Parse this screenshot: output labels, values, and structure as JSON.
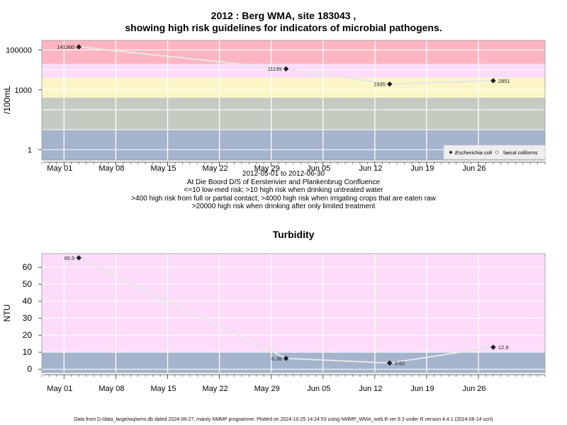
{
  "main_title_line1": "2012 : Berg WMA, site 183043 ,",
  "main_title_line2": "showing high risk guidelines for indicators of microbial pathogens.",
  "subtitle_lines": [
    "2012-05-01 to 2012-06-30",
    "At Die Boord D/S of Eersterivier and Plankenbrug Confluence",
    "<=10 low-med risk; >10 high risk when drinking untreated water",
    ">400 high risk from full or partial contact; >4000 high risk when irrigating crops that are eaten raw",
    ">20000 high risk when drinking after only limited treatment"
  ],
  "footer": "Data from D:/data_large/wq/wms.db dated 2024-08-27, mainly NMMP programme. Plotted on 2024-10-25 14:24:53 using NMMP_WMA_web.R ver 9.3 under R version 4.4.1 (2024-06-14 ucrt)",
  "colors": {
    "band_blue": "#a4b4cc",
    "band_grey": "#c4cbc0",
    "band_yellow": "#fcf6c6",
    "band_pink": "#fcdcf9",
    "band_red": "#fdb6c1",
    "line": "#e6e6e6",
    "point": "#222222",
    "axis": "#333333"
  },
  "chart_data": [
    {
      "type": "line",
      "title": "",
      "ylabel": "/100mL",
      "xlabel": "",
      "log_scale_y": true,
      "x_tick_labels": [
        "May 01",
        "May 08",
        "May 15",
        "May 22",
        "May 29",
        "Jun 05",
        "Jun 12",
        "Jun 19",
        "Jun 26"
      ],
      "x_tick_dates": [
        "2012-05-01",
        "2012-05-08",
        "2012-05-15",
        "2012-05-22",
        "2012-05-29",
        "2012-06-05",
        "2012-06-12",
        "2012-06-19",
        "2012-06-26"
      ],
      "x_range": [
        "2012-04-28",
        "2012-07-05"
      ],
      "y_tick_labels": [
        "1",
        "1000",
        "100000"
      ],
      "y_tick_values": [
        1,
        1000,
        100000
      ],
      "ylim": [
        0.3,
        300000
      ],
      "grid": true,
      "legend_position": "bottom-right",
      "legend": [
        "Escherichia coli",
        "faecal coliforms"
      ],
      "risk_bands": [
        {
          "from": 0.3,
          "to": 10,
          "color": "#a4b4cc"
        },
        {
          "from": 10,
          "to": 400,
          "color": "#c4cbc0"
        },
        {
          "from": 400,
          "to": 4000,
          "color": "#fcf6c6"
        },
        {
          "from": 4000,
          "to": 20000,
          "color": "#fcdcf9"
        },
        {
          "from": 20000,
          "to": 300000,
          "color": "#fdb6c1"
        }
      ],
      "series": [
        {
          "name": "Escherichia coli",
          "points": [
            {
              "x": "2012-05-03",
              "y": 141360,
              "label": "141360",
              "label_side": "left"
            },
            {
              "x": "2012-05-31",
              "y": 11199,
              "label": "11199",
              "label_side": "left"
            },
            {
              "x": "2012-06-14",
              "y": 1935,
              "label": "1935",
              "label_side": "left"
            },
            {
              "x": "2012-06-28",
              "y": 2851,
              "label": "2851",
              "label_side": "right"
            }
          ]
        }
      ]
    },
    {
      "type": "line",
      "title": "Turbidity",
      "ylabel": "NTU",
      "xlabel": "",
      "log_scale_y": false,
      "x_tick_labels": [
        "May 01",
        "May 08",
        "May 15",
        "May 22",
        "May 29",
        "Jun 05",
        "Jun 12",
        "Jun 19",
        "Jun 26"
      ],
      "x_tick_dates": [
        "2012-05-01",
        "2012-05-08",
        "2012-05-15",
        "2012-05-22",
        "2012-05-29",
        "2012-06-05",
        "2012-06-12",
        "2012-06-19",
        "2012-06-26"
      ],
      "x_range": [
        "2012-04-28",
        "2012-07-05"
      ],
      "y_tick_labels": [
        "0",
        "10",
        "20",
        "30",
        "40",
        "50",
        "60"
      ],
      "y_tick_values": [
        0,
        10,
        20,
        30,
        40,
        50,
        60
      ],
      "ylim": [
        -2,
        68
      ],
      "grid": true,
      "risk_bands": [
        {
          "from": -2,
          "to": 10,
          "color": "#a4b4cc"
        },
        {
          "from": 10,
          "to": 68,
          "color": "#fcdcf9"
        }
      ],
      "series": [
        {
          "points": [
            {
              "x": "2012-05-03",
              "y": 65.5,
              "label": "65.5",
              "label_side": "left"
            },
            {
              "x": "2012-05-31",
              "y": 6.38,
              "label": "6.38",
              "label_side": "left"
            },
            {
              "x": "2012-06-14",
              "y": 3.62,
              "label": "3.62",
              "label_side": "right"
            },
            {
              "x": "2012-06-28",
              "y": 12.9,
              "label": "12.9",
              "label_side": "right"
            }
          ]
        }
      ]
    }
  ]
}
